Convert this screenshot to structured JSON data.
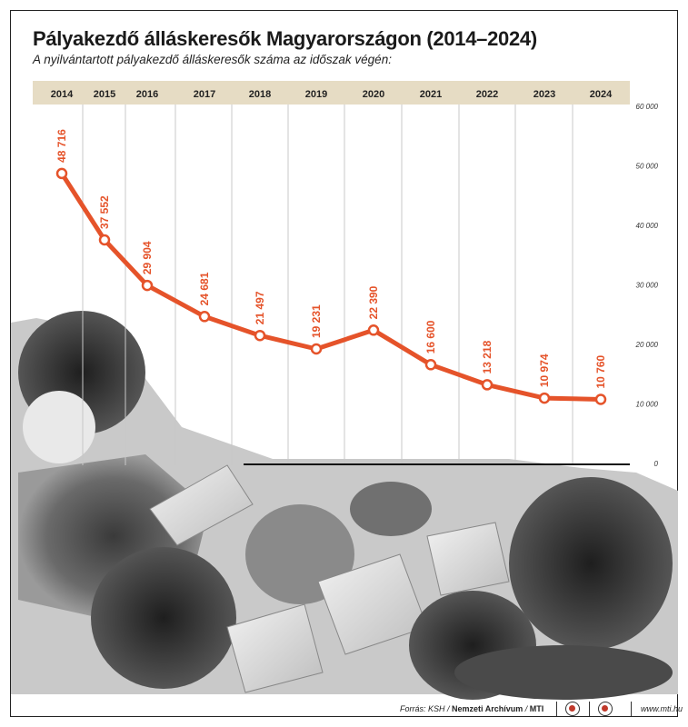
{
  "title": "Pályakezdő álláskeresők Magyarországon (2014–2024)",
  "subtitle": "A nyilvántartott pályakezdő álláskeresők száma az időszak végén:",
  "footer": {
    "source_prefix": "Forrás: KSH /",
    "source_archive": "Nemzeti Archívum",
    "source_sep": "/",
    "source_mti": "MTI",
    "website": "www.mti.hu",
    "logos": [
      "mtva-logo-icon",
      "mti-logo-icon"
    ]
  },
  "chart_data": {
    "type": "line",
    "title": "Pályakezdő álláskeresők Magyarországon (2014–2024)",
    "subtitle": "A nyilvántartott pályakezdő álláskeresők száma az időszak végén:",
    "categories": [
      "2014",
      "2015",
      "2016",
      "2017",
      "2018",
      "2019",
      "2020",
      "2021",
      "2022",
      "2023",
      "2024"
    ],
    "series": [
      {
        "values": [
          48716,
          37552,
          29904,
          24681,
          21497,
          19231,
          22390,
          16600,
          13218,
          10974,
          10760
        ],
        "labels": [
          "48 716",
          "37 552",
          "29 904",
          "24 681",
          "21 497",
          "19 231",
          "22 390",
          "16 600",
          "13 218",
          "10 974",
          "10 760"
        ],
        "color": "#e5532a"
      }
    ],
    "ylim": [
      0,
      60000
    ],
    "yticks": [
      0,
      10000,
      20000,
      30000,
      40000,
      50000,
      60000
    ],
    "ytick_labels": [
      "0",
      "10 000",
      "20 000",
      "30 000",
      "40 000",
      "50 000",
      "60 000"
    ],
    "y_axis_position": "right",
    "x_axis_position": "top",
    "grid": "vertical",
    "colors": {
      "line": "#e5532a",
      "band": "#e6dcc4",
      "grid": "#c8c8c8"
    },
    "background_image": "students-writing-photo"
  }
}
